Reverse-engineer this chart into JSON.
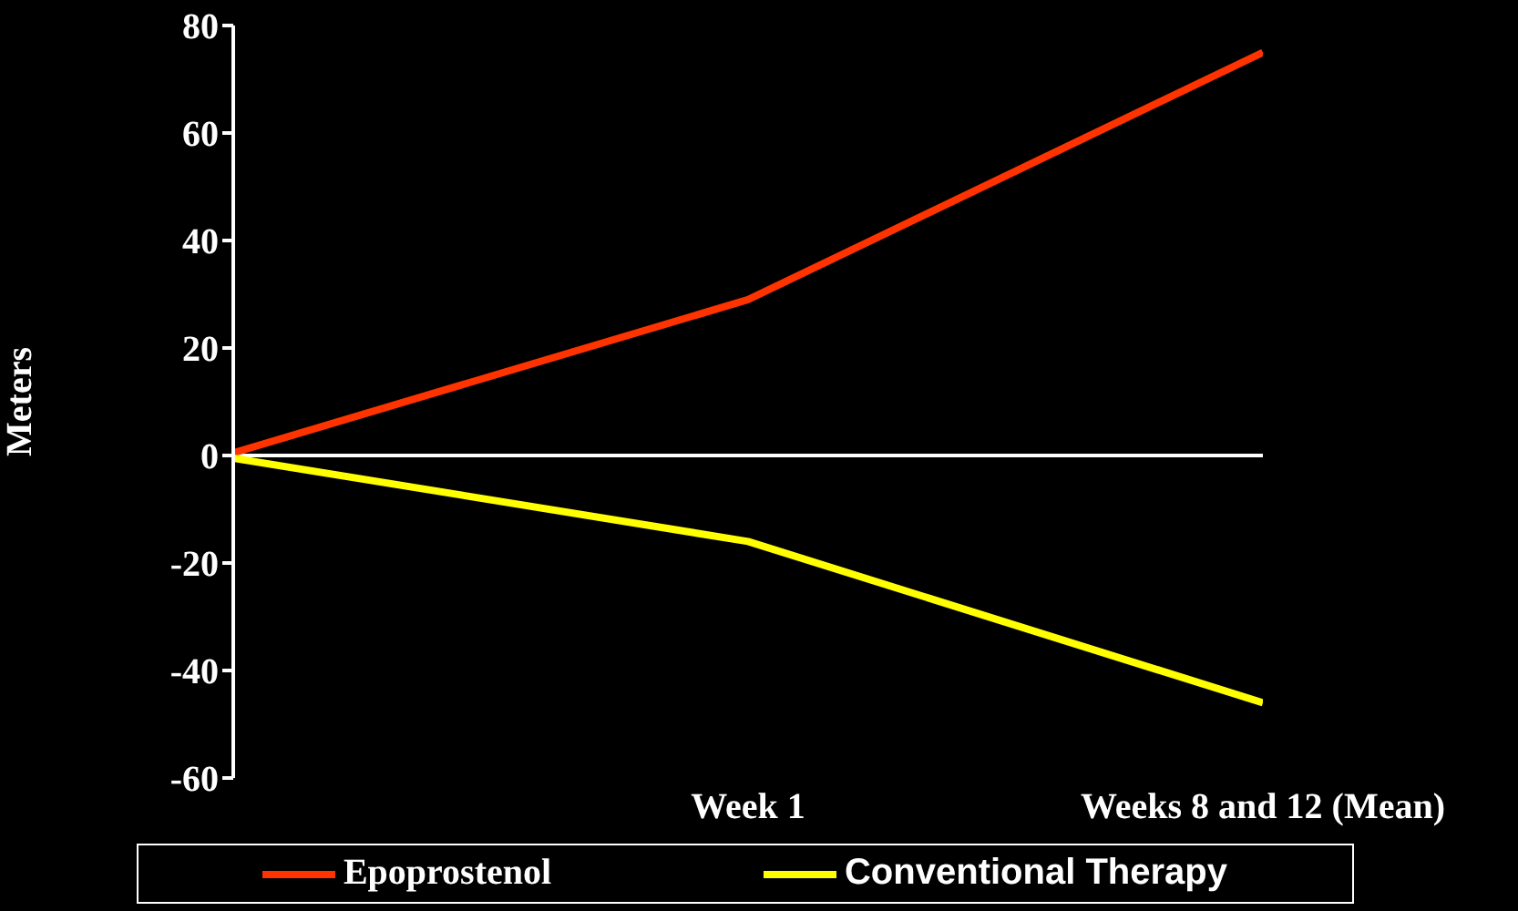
{
  "chart_data": {
    "type": "line",
    "ylabel": "Meters",
    "categories": [
      null,
      "Week 1",
      "Weeks 8 and 12 (Mean)"
    ],
    "series": [
      {
        "name": "Epoprostenol",
        "color": "#ff3300",
        "values": [
          0.5,
          29,
          75
        ]
      },
      {
        "name": "Conventional Therapy",
        "color": "#ffff00",
        "values": [
          -0.5,
          -16,
          -46
        ]
      }
    ],
    "ylim": [
      -60,
      80
    ],
    "yticks": [
      -60,
      -40,
      -20,
      0,
      20,
      40,
      60,
      80
    ],
    "grid": false,
    "legend": "bottom",
    "marker": "none",
    "line_style": "solid",
    "ref_lines": [
      {
        "axis": "y",
        "value": 0,
        "color": "#ffffff"
      }
    ]
  }
}
